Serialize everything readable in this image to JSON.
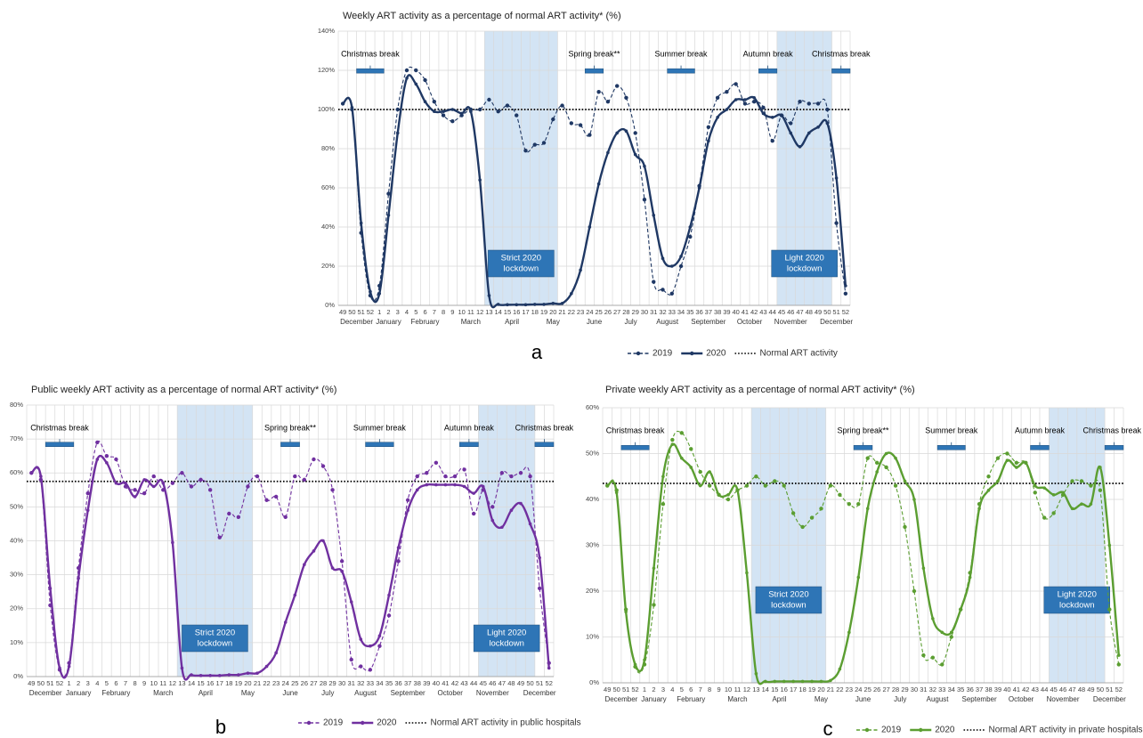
{
  "chart_data": [
    {
      "type": "line",
      "title": "Weekly ART activity as a percentage of normal ART activity* (%)",
      "panel_label": "a",
      "categories": [
        49,
        50,
        51,
        52,
        1,
        2,
        3,
        4,
        5,
        6,
        7,
        8,
        9,
        10,
        11,
        12,
        13,
        14,
        15,
        16,
        17,
        18,
        19,
        20,
        21,
        22,
        23,
        24,
        25,
        26,
        27,
        28,
        29,
        30,
        31,
        32,
        33,
        34,
        35,
        36,
        37,
        38,
        39,
        40,
        41,
        42,
        43,
        44,
        45,
        46,
        47,
        48,
        49,
        50,
        51,
        52
      ],
      "months": [
        "December",
        "January",
        "February",
        "March",
        "April",
        "May",
        "June",
        "July",
        "August",
        "September",
        "October",
        "November",
        "December"
      ],
      "ylim": [
        0,
        140
      ],
      "yticks": [
        {
          "value": 0,
          "label": "0%"
        },
        {
          "value": 20,
          "label": "20%"
        },
        {
          "value": 40,
          "label": "40%"
        },
        {
          "value": 60,
          "label": "60%"
        },
        {
          "value": 80,
          "label": "80%"
        },
        {
          "value": 100,
          "label": "100%"
        },
        {
          "value": 120,
          "label": "120%"
        },
        {
          "value": 140,
          "label": "140%"
        }
      ],
      "grid": true,
      "series": [
        {
          "name": "2019",
          "color": "#1f3864",
          "line_style": "dashed",
          "values": [
            103,
            100,
            37,
            5,
            10,
            57,
            100,
            120,
            120,
            115,
            104,
            97,
            94,
            97,
            100,
            100,
            105,
            99,
            102,
            97,
            79,
            82,
            83,
            95,
            102,
            93,
            92,
            87,
            109,
            104,
            112,
            106,
            88,
            54,
            12,
            8,
            6,
            20,
            35,
            61,
            91,
            106,
            109,
            113,
            103,
            104,
            101,
            84,
            97,
            93,
            104,
            103,
            103,
            100,
            42,
            6
          ]
        },
        {
          "name": "2020",
          "color": "#1f3864",
          "line_style": "solid",
          "values": [
            103,
            101,
            42,
            7,
            6,
            46,
            88,
            116,
            113,
            104,
            99,
            99,
            100,
            98,
            99,
            64,
            5,
            0.5,
            0.3,
            0.3,
            0.3,
            0.5,
            0.5,
            1,
            1,
            6,
            18,
            40,
            62,
            78,
            88,
            89,
            77,
            71,
            46,
            24,
            20,
            25,
            40,
            60,
            84,
            96,
            100,
            105,
            105,
            106,
            98,
            96,
            97,
            88,
            81,
            88,
            91,
            93,
            65,
            10
          ]
        }
      ],
      "reference": {
        "name": "Normal ART activity",
        "value": 100,
        "color": "#000000",
        "line_style": "dotted"
      },
      "breaks": [
        {
          "label": "Christmas break",
          "from": 51,
          "to": 1
        },
        {
          "label": "Spring break**",
          "from": 24,
          "to": 25
        },
        {
          "label": "Summer break",
          "from": 33,
          "to": 35
        },
        {
          "label": "Autumn break",
          "from": 43,
          "to": 44
        },
        {
          "label": "Christmas break",
          "from": 51,
          "to": 52
        }
      ],
      "lockdowns": [
        {
          "label": [
            "Strict 2020",
            "lockdown"
          ],
          "from": 13,
          "to": 20
        },
        {
          "label": [
            "Light 2020",
            "lockdown"
          ],
          "from": 45,
          "to": 50
        }
      ]
    },
    {
      "type": "line",
      "title": "Public weekly ART activity as a percentage of normal ART activity* (%)",
      "panel_label": "b",
      "categories": [
        49,
        50,
        51,
        52,
        1,
        2,
        3,
        4,
        5,
        6,
        7,
        8,
        9,
        10,
        11,
        12,
        13,
        14,
        15,
        16,
        17,
        18,
        19,
        20,
        21,
        22,
        23,
        24,
        25,
        26,
        27,
        28,
        29,
        30,
        31,
        32,
        33,
        34,
        35,
        36,
        37,
        38,
        39,
        40,
        41,
        42,
        43,
        44,
        45,
        46,
        47,
        48,
        49,
        50,
        51,
        52
      ],
      "months": [
        "December",
        "January",
        "February",
        "March",
        "April",
        "May",
        "June",
        "July",
        "August",
        "September",
        "October",
        "November",
        "December"
      ],
      "ylim": [
        0,
        80
      ],
      "yticks": [
        {
          "value": 0,
          "label": "0%"
        },
        {
          "value": 10,
          "label": "10%"
        },
        {
          "value": 20,
          "label": "20%"
        },
        {
          "value": 30,
          "label": "30%"
        },
        {
          "value": 40,
          "label": "40%"
        },
        {
          "value": 50,
          "label": "50%"
        },
        {
          "value": 60,
          "label": "60%"
        },
        {
          "value": 70,
          "label": "70%"
        },
        {
          "value": 80,
          "label": "80%"
        }
      ],
      "grid": true,
      "series": [
        {
          "name": "2019",
          "color": "#7030a0",
          "line_style": "dashed",
          "values": [
            60,
            58,
            21,
            2,
            4,
            32,
            54,
            69,
            65,
            64,
            56,
            55,
            54,
            59,
            55,
            57,
            60,
            56,
            58,
            55,
            41,
            48,
            47,
            56,
            59,
            52,
            53,
            47,
            59,
            58,
            64,
            62,
            55,
            34,
            5,
            3,
            2,
            9,
            18,
            34,
            52,
            59,
            60,
            63,
            59,
            59,
            61,
            48,
            55,
            50,
            60,
            59,
            60,
            59,
            26,
            4
          ]
        },
        {
          "name": "2020",
          "color": "#7030a0",
          "line_style": "solid",
          "values": [
            60,
            59,
            26,
            2.5,
            3,
            29,
            49,
            64,
            63,
            57,
            57,
            53,
            58,
            56,
            57,
            39.5,
            2.5,
            0.5,
            0.3,
            0.3,
            0.3,
            0.5,
            0.5,
            1,
            1,
            3,
            7,
            16,
            24,
            33,
            37,
            40,
            32,
            31,
            22,
            11,
            9,
            12,
            24,
            38,
            49,
            55,
            56.5,
            56.5,
            56.5,
            56.5,
            56,
            54,
            56,
            46,
            44,
            49,
            51,
            45,
            35,
            2.5
          ]
        }
      ],
      "reference": {
        "name": "Normal ART activity in public hospitals",
        "value": 57.5,
        "color": "#000000",
        "line_style": "dotted"
      },
      "breaks": [
        {
          "label": "Christmas break",
          "from": 51,
          "to": 1
        },
        {
          "label": "Spring break**",
          "from": 24,
          "to": 25
        },
        {
          "label": "Summer break",
          "from": 33,
          "to": 35
        },
        {
          "label": "Autumn break",
          "from": 43,
          "to": 44
        },
        {
          "label": "Christmas break",
          "from": 51,
          "to": 52
        }
      ],
      "lockdowns": [
        {
          "label": [
            "Strict 2020",
            "lockdown"
          ],
          "from": 13,
          "to": 20
        },
        {
          "label": [
            "Light 2020",
            "lockdown"
          ],
          "from": 45,
          "to": 50
        }
      ]
    },
    {
      "type": "line",
      "title": "Private weekly ART activity as a percentage of normal ART activity* (%)",
      "panel_label": "c",
      "categories": [
        49,
        50,
        51,
        52,
        1,
        2,
        3,
        4,
        5,
        6,
        7,
        8,
        9,
        10,
        11,
        12,
        13,
        14,
        15,
        16,
        17,
        18,
        19,
        20,
        21,
        22,
        23,
        24,
        25,
        26,
        27,
        28,
        29,
        30,
        31,
        32,
        33,
        34,
        35,
        36,
        37,
        38,
        39,
        40,
        41,
        42,
        43,
        44,
        45,
        46,
        47,
        48,
        49,
        50,
        51,
        52
      ],
      "months": [
        "December",
        "January",
        "February",
        "March",
        "April",
        "May",
        "June",
        "July",
        "August",
        "September",
        "October",
        "November",
        "December"
      ],
      "ylim": [
        0,
        60
      ],
      "yticks": [
        {
          "value": 0,
          "label": "0%"
        },
        {
          "value": 10,
          "label": "10%"
        },
        {
          "value": 20,
          "label": "20%"
        },
        {
          "value": 30,
          "label": "30%"
        },
        {
          "value": 40,
          "label": "40%"
        },
        {
          "value": 50,
          "label": "50%"
        },
        {
          "value": 60,
          "label": "60%"
        }
      ],
      "grid": true,
      "series": [
        {
          "name": "2019",
          "color": "#5b9e31",
          "line_style": "dashed",
          "values": [
            43,
            42,
            16,
            3.5,
            4,
            17,
            39,
            53,
            54.5,
            51,
            46,
            43,
            41,
            40,
            42,
            43,
            45,
            43,
            44,
            43,
            37,
            34,
            36,
            38,
            43,
            41,
            39,
            39,
            49,
            48,
            47,
            43,
            34,
            20,
            6,
            5.5,
            4,
            10,
            16,
            24,
            39,
            45,
            49,
            50,
            48,
            48,
            41.5,
            36,
            37,
            41,
            44,
            44,
            43,
            42,
            16,
            4
          ]
        },
        {
          "name": "2020",
          "color": "#5b9e31",
          "line_style": "solid",
          "values": [
            43,
            41.5,
            15.5,
            4,
            5,
            25,
            45,
            52,
            49,
            47,
            43,
            46,
            41,
            41,
            42,
            24,
            2,
            0.3,
            0.3,
            0.3,
            0.3,
            0.3,
            0.3,
            0.3,
            0.5,
            3,
            11,
            23,
            38,
            46,
            50,
            49,
            44,
            40,
            25,
            14,
            11,
            11,
            16,
            23,
            38,
            42,
            44,
            48.5,
            47,
            48,
            43,
            42.5,
            41,
            41.5,
            38,
            39,
            39,
            47,
            30,
            6
          ]
        }
      ],
      "reference": {
        "name": "Normal ART activity in private hospitals",
        "value": 43.5,
        "color": "#000000",
        "line_style": "dotted"
      },
      "breaks": [
        {
          "label": "Christmas break",
          "from": 51,
          "to": 1
        },
        {
          "label": "Spring break**",
          "from": 24,
          "to": 25
        },
        {
          "label": "Summer break",
          "from": 33,
          "to": 35
        },
        {
          "label": "Autumn break",
          "from": 43,
          "to": 44
        },
        {
          "label": "Christmas break",
          "from": 51,
          "to": 52
        }
      ],
      "lockdowns": [
        {
          "label": [
            "Strict 2020",
            "lockdown"
          ],
          "from": 13,
          "to": 20
        },
        {
          "label": [
            "Light 2020",
            "lockdown"
          ],
          "from": 45,
          "to": 50
        }
      ]
    }
  ]
}
